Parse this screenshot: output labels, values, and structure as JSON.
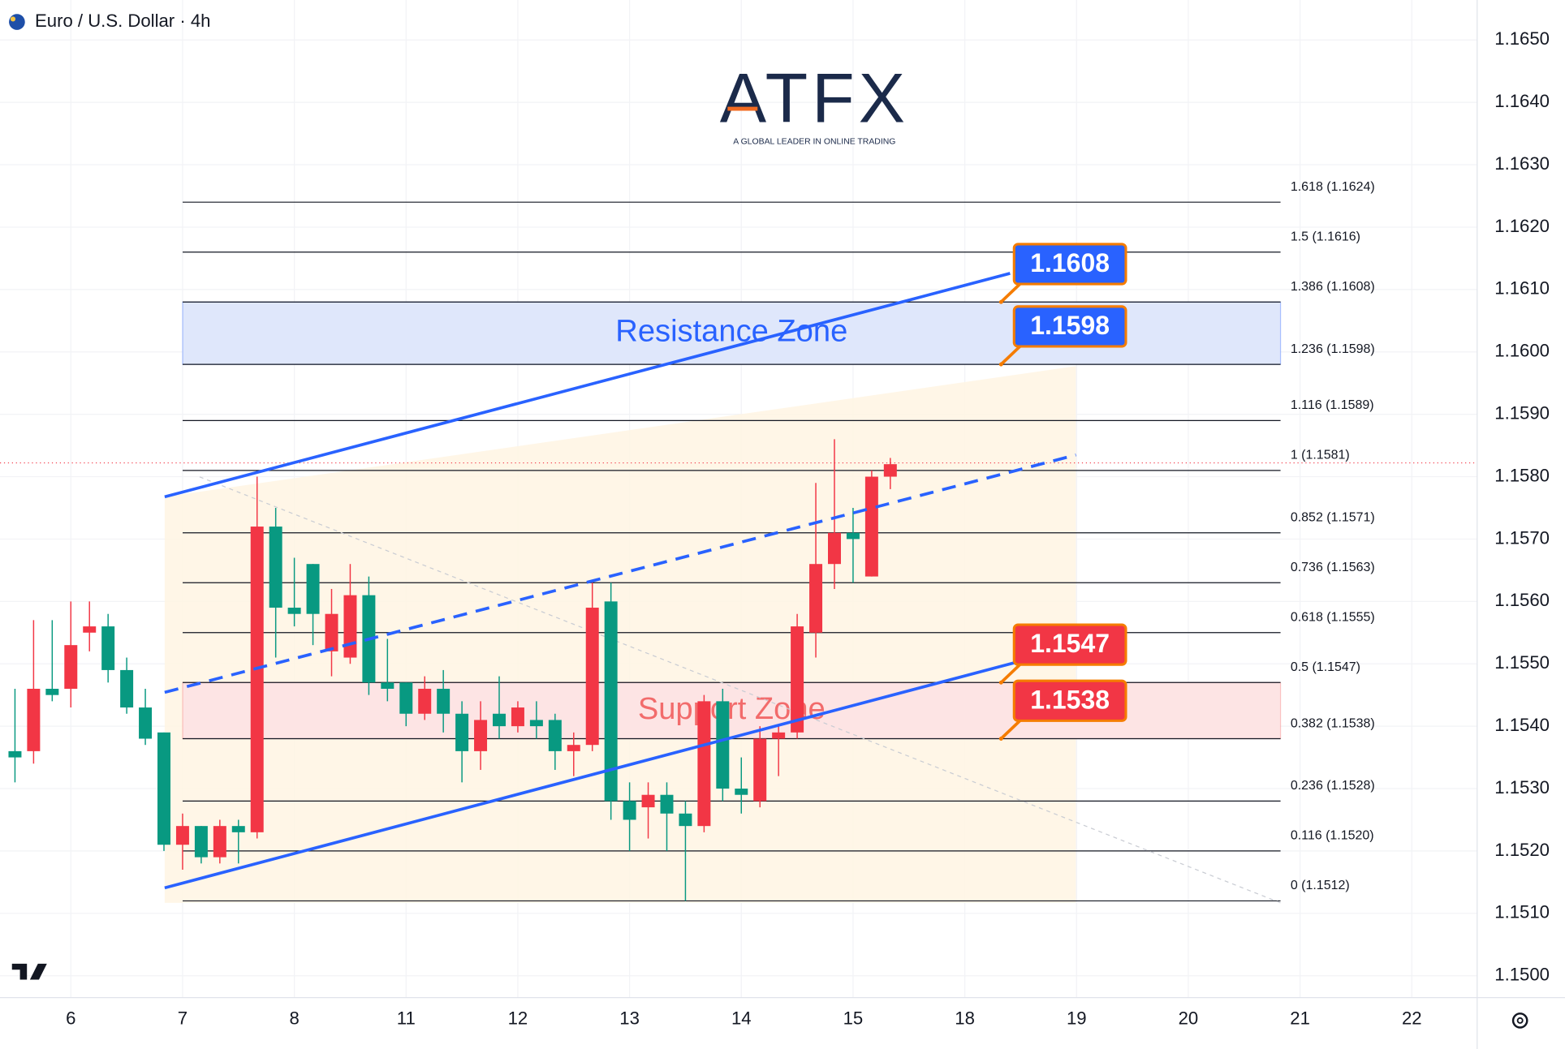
{
  "header": {
    "title": "Euro / U.S. Dollar · 4h"
  },
  "logo": {
    "name": "ATFX",
    "tagline": "A GLOBAL LEADER IN ONLINE TRADING"
  },
  "chart_data": {
    "type": "candlestick",
    "up_color": "#f23645",
    "down_color": "#089981",
    "candles": {
      "open": [
        1.1536,
        1.1536,
        1.1546,
        1.1546,
        1.1555,
        1.1556,
        1.1549,
        1.1543,
        1.1539,
        1.1521,
        1.1524,
        1.1519,
        1.1524,
        1.1523,
        1.1572,
        1.1559,
        1.1566,
        1.1552,
        1.1551,
        1.1561,
        1.1547,
        1.1547,
        1.1542,
        1.1546,
        1.1542,
        1.1536,
        1.1542,
        1.154,
        1.1541,
        1.1541,
        1.1536,
        1.1537,
        1.156,
        1.1528,
        1.1527,
        1.1529,
        1.1526,
        1.1524,
        1.1544,
        1.153,
        1.1528,
        1.1538,
        1.1539,
        1.1555,
        1.1566,
        1.1571,
        1.1564,
        1.158
      ],
      "high": [
        1.1546,
        1.1557,
        1.1557,
        1.156,
        1.156,
        1.1558,
        1.1551,
        1.1546,
        1.1539,
        1.1526,
        1.1524,
        1.1525,
        1.1525,
        1.158,
        1.1575,
        1.1567,
        1.1566,
        1.1562,
        1.1566,
        1.1564,
        1.1554,
        1.1547,
        1.1548,
        1.1549,
        1.1544,
        1.1544,
        1.1548,
        1.1544,
        1.1544,
        1.1542,
        1.1539,
        1.1563,
        1.1563,
        1.1531,
        1.1531,
        1.1531,
        1.1528,
        1.1545,
        1.1546,
        1.1535,
        1.154,
        1.154,
        1.1558,
        1.1579,
        1.1586,
        1.1575,
        1.1581,
        1.1583
      ],
      "low": [
        1.1531,
        1.1534,
        1.1544,
        1.1543,
        1.1552,
        1.1547,
        1.1542,
        1.1537,
        1.152,
        1.1517,
        1.1518,
        1.1518,
        1.1518,
        1.1522,
        1.1551,
        1.1556,
        1.1553,
        1.1548,
        1.155,
        1.1545,
        1.1544,
        1.154,
        1.1541,
        1.1539,
        1.1531,
        1.1533,
        1.1538,
        1.1539,
        1.1538,
        1.1533,
        1.1532,
        1.1536,
        1.1525,
        1.152,
        1.1522,
        1.152,
        1.1512,
        1.1523,
        1.1528,
        1.1526,
        1.1527,
        1.1532,
        1.1538,
        1.1551,
        1.1562,
        1.1563,
        1.1564,
        1.1578
      ],
      "close": [
        1.1535,
        1.1546,
        1.1545,
        1.1553,
        1.1556,
        1.1549,
        1.1543,
        1.1538,
        1.1521,
        1.1524,
        1.1519,
        1.1524,
        1.1523,
        1.1572,
        1.1559,
        1.1558,
        1.1558,
        1.1558,
        1.1561,
        1.1547,
        1.1546,
        1.1542,
        1.1546,
        1.1542,
        1.1536,
        1.1541,
        1.154,
        1.1543,
        1.154,
        1.1536,
        1.1537,
        1.1559,
        1.1528,
        1.1525,
        1.1529,
        1.1526,
        1.1524,
        1.1544,
        1.153,
        1.1529,
        1.1538,
        1.1539,
        1.1556,
        1.1566,
        1.1571,
        1.157,
        1.158,
        1.1582
      ]
    },
    "x_labels": [
      "6",
      "7",
      "8",
      "11",
      "12",
      "13",
      "14",
      "15",
      "18",
      "19",
      "20",
      "21",
      "22"
    ],
    "ylim": [
      1.14965,
      1.16564
    ],
    "yticks": [
      {
        "value": 1.165,
        "label": "1.1650"
      },
      {
        "value": 1.164,
        "label": "1.1640"
      },
      {
        "value": 1.163,
        "label": "1.1630"
      },
      {
        "value": 1.162,
        "label": "1.1620"
      },
      {
        "value": 1.161,
        "label": "1.1610"
      },
      {
        "value": 1.16,
        "label": "1.1600"
      },
      {
        "value": 1.159,
        "label": "1.1590"
      },
      {
        "value": 1.158,
        "label": "1.1580"
      },
      {
        "value": 1.157,
        "label": "1.1570"
      },
      {
        "value": 1.156,
        "label": "1.1560"
      },
      {
        "value": 1.155,
        "label": "1.1550"
      },
      {
        "value": 1.154,
        "label": "1.1540"
      },
      {
        "value": 1.153,
        "label": "1.1530"
      },
      {
        "value": 1.152,
        "label": "1.1520"
      },
      {
        "value": 1.151,
        "label": "1.1510"
      },
      {
        "value": 1.15,
        "label": "1.1500"
      }
    ],
    "grid": true,
    "fib_levels": [
      {
        "value": 1.1624,
        "label": "1.618 (1.1624)"
      },
      {
        "value": 1.1616,
        "label": "1.5 (1.1616)"
      },
      {
        "value": 1.1608,
        "label": "1.386 (1.1608)"
      },
      {
        "value": 1.1598,
        "label": "1.236 (1.1598)"
      },
      {
        "value": 1.1589,
        "label": "1.116 (1.1589)"
      },
      {
        "value": 1.1581,
        "label": "1 (1.1581)"
      },
      {
        "value": 1.1571,
        "label": "0.852 (1.1571)"
      },
      {
        "value": 1.1563,
        "label": "0.736 (1.1563)"
      },
      {
        "value": 1.1555,
        "label": "0.618 (1.1555)"
      },
      {
        "value": 1.1547,
        "label": "0.5 (1.1547)"
      },
      {
        "value": 1.1538,
        "label": "0.382 (1.1538)"
      },
      {
        "value": 1.1528,
        "label": "0.236 (1.1528)"
      },
      {
        "value": 1.152,
        "label": "0.116 (1.1520)"
      },
      {
        "value": 1.1512,
        "label": "0 (1.1512)"
      }
    ],
    "zones": [
      {
        "label": "Resistance Zone",
        "from": 1.1598,
        "to": 1.1608,
        "fill": "#dfe7fb",
        "text_color": "#2962ff"
      },
      {
        "label": "Support Zone",
        "from": 1.1538,
        "to": 1.1547,
        "fill": "#fde4e4",
        "text_color": "#f26b6b"
      }
    ],
    "price_tags": [
      {
        "value": 1.1608,
        "color": "#2962ff"
      },
      {
        "value": 1.1598,
        "color": "#2962ff"
      },
      {
        "value": 1.1547,
        "color": "#f23645"
      },
      {
        "value": 1.1538,
        "color": "#f23645"
      }
    ]
  }
}
